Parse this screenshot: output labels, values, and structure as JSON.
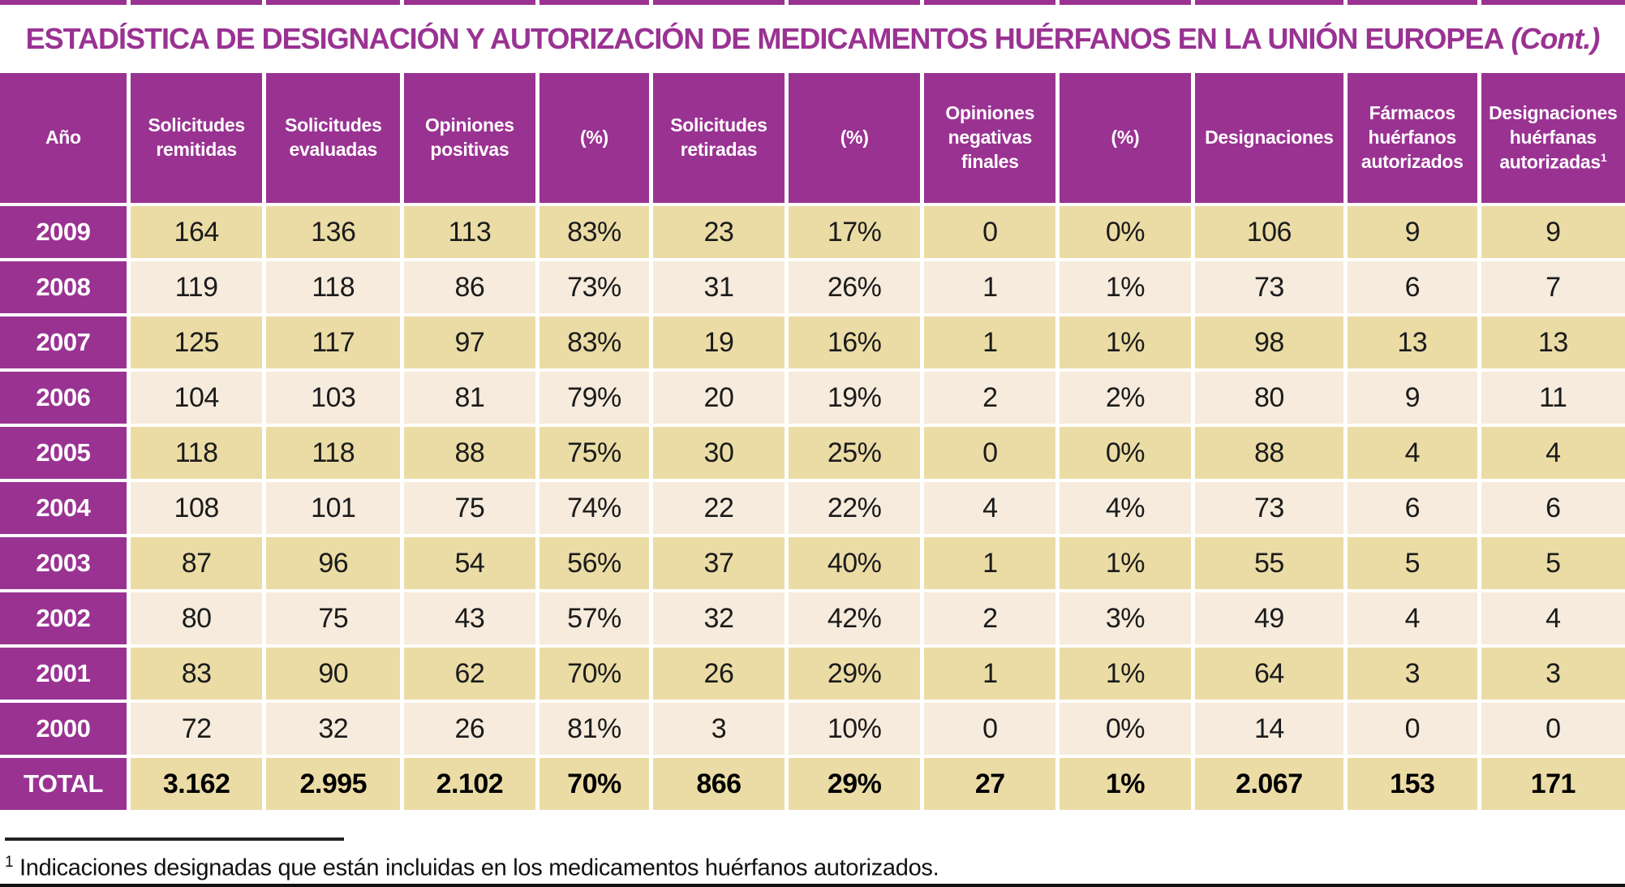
{
  "title": {
    "main": "ESTADÍSTICA DE DESIGNACIÓN Y AUTORIZACIÓN DE MEDICAMENTOS HUÉRFANOS EN LA UNIÓN EUROPEA",
    "cont": " (Cont.)"
  },
  "colors": {
    "header_purple": "#9a3292",
    "row_dark_tan": "#ebdca6",
    "row_light_cream": "#f6ebdc",
    "text_ink": "#1b1b1b"
  },
  "table": {
    "columns": [
      {
        "label": "Año"
      },
      {
        "label": "Solicitudes remitidas"
      },
      {
        "label": "Solicitudes evaluadas"
      },
      {
        "label": "Opiniones positivas"
      },
      {
        "label": "(%)"
      },
      {
        "label": "Solicitudes retiradas"
      },
      {
        "label": "(%)"
      },
      {
        "label": "Opiniones negativas finales"
      },
      {
        "label": "(%)"
      },
      {
        "label": "Designaciones"
      },
      {
        "label": "Fármacos huérfanos autorizados"
      },
      {
        "label": "Designaciones huérfanas autorizadas",
        "sup": "1"
      }
    ],
    "rows": [
      {
        "year": "2009",
        "values": [
          "164",
          "136",
          "113",
          "83%",
          "23",
          "17%",
          "0",
          "0%",
          "106",
          "9",
          "9"
        ]
      },
      {
        "year": "2008",
        "values": [
          "119",
          "118",
          "86",
          "73%",
          "31",
          "26%",
          "1",
          "1%",
          "73",
          "6",
          "7"
        ]
      },
      {
        "year": "2007",
        "values": [
          "125",
          "117",
          "97",
          "83%",
          "19",
          "16%",
          "1",
          "1%",
          "98",
          "13",
          "13"
        ]
      },
      {
        "year": "2006",
        "values": [
          "104",
          "103",
          "81",
          "79%",
          "20",
          "19%",
          "2",
          "2%",
          "80",
          "9",
          "11"
        ]
      },
      {
        "year": "2005",
        "values": [
          "118",
          "118",
          "88",
          "75%",
          "30",
          "25%",
          "0",
          "0%",
          "88",
          "4",
          "4"
        ]
      },
      {
        "year": "2004",
        "values": [
          "108",
          "101",
          "75",
          "74%",
          "22",
          "22%",
          "4",
          "4%",
          "73",
          "6",
          "6"
        ]
      },
      {
        "year": "2003",
        "values": [
          "87",
          "96",
          "54",
          "56%",
          "37",
          "40%",
          "1",
          "1%",
          "55",
          "5",
          "5"
        ]
      },
      {
        "year": "2002",
        "values": [
          "80",
          "75",
          "43",
          "57%",
          "32",
          "42%",
          "2",
          "3%",
          "49",
          "4",
          "4"
        ]
      },
      {
        "year": "2001",
        "values": [
          "83",
          "90",
          "62",
          "70%",
          "26",
          "29%",
          "1",
          "1%",
          "64",
          "3",
          "3"
        ]
      },
      {
        "year": "2000",
        "values": [
          "72",
          "32",
          "26",
          "81%",
          "3",
          "10%",
          "0",
          "0%",
          "14",
          "0",
          "0"
        ]
      }
    ],
    "total": {
      "label": "TOTAL",
      "values": [
        "3.162",
        "2.995",
        "2.102",
        "70%",
        "866",
        "29%",
        "27",
        "1%",
        "2.067",
        "153",
        "171"
      ]
    }
  },
  "footnote": {
    "marker": "1",
    "text": " Indicaciones designadas que están incluidas en los medicamentos huérfanos autorizados."
  }
}
